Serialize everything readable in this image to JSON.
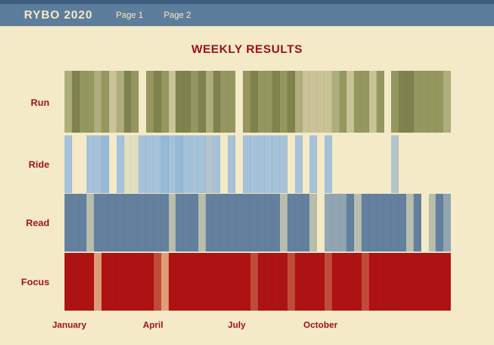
{
  "header": {
    "app_title": "RYBO 2020",
    "nav": [
      {
        "label": "Page 1"
      },
      {
        "label": "Page 2"
      }
    ]
  },
  "main": {
    "title": "WEEKLY RESULTS"
  },
  "colors": {
    "background": "#f4eac7",
    "header_bar": "#5d7d9c",
    "header_accent": "#3f5f82",
    "header_text": "#f4eac7",
    "accent_red_text": "#a31318"
  },
  "chart_data": {
    "type": "heatmap",
    "title": "WEEKLY RESULTS",
    "weeks": 52,
    "xticklabels": [
      "January",
      "April",
      "July",
      "October"
    ],
    "legend": "none",
    "value_scale": "0 = no activity (background), 1-4 = increasing intensity",
    "rows": [
      {
        "label": "Run",
        "colors": {
          "0": "transparent",
          "1": "#c9c397",
          "2": "#aeae7c",
          "3": "#959760",
          "4": "#7f824c"
        },
        "values": [
          2,
          4,
          3,
          3,
          2,
          3,
          1,
          2,
          4,
          3,
          0,
          3,
          4,
          3,
          1,
          4,
          4,
          3,
          4,
          2,
          4,
          3,
          3,
          0,
          3,
          4,
          3,
          3,
          4,
          3,
          4,
          2,
          1,
          1,
          1,
          1,
          2,
          3,
          1,
          3,
          3,
          1,
          3,
          0,
          3,
          4,
          4,
          3,
          3,
          3,
          3,
          2
        ]
      },
      {
        "label": "Ride",
        "colors": {
          "0": "transparent",
          "1": "#e0dfc0",
          "2": "#b4c4cb",
          "3": "#a6c2da",
          "4": "#95b9d6"
        },
        "values": [
          3,
          0,
          0,
          3,
          3,
          4,
          0,
          3,
          1,
          1,
          3,
          3,
          3,
          4,
          3,
          4,
          3,
          3,
          3,
          2,
          3,
          0,
          3,
          0,
          3,
          3,
          3,
          3,
          3,
          3,
          0,
          3,
          0,
          3,
          0,
          3,
          0,
          0,
          0,
          0,
          0,
          0,
          0,
          0,
          2,
          0,
          0,
          0,
          0,
          0,
          0,
          0
        ]
      },
      {
        "label": "Read",
        "colors": {
          "0": "transparent",
          "1": "#b8beae",
          "2": "#91a5b3",
          "3": "#7690a9",
          "4": "#64809f"
        },
        "values": [
          4,
          4,
          4,
          1,
          4,
          4,
          4,
          4,
          4,
          4,
          4,
          4,
          4,
          4,
          1,
          4,
          4,
          4,
          1,
          4,
          4,
          4,
          4,
          4,
          4,
          4,
          4,
          4,
          4,
          1,
          4,
          4,
          4,
          1,
          0,
          2,
          2,
          2,
          4,
          1,
          4,
          4,
          4,
          4,
          4,
          4,
          1,
          4,
          0,
          1,
          4,
          2
        ]
      },
      {
        "label": "Focus",
        "colors": {
          "0": "transparent",
          "1": "#df9d77",
          "2": "#c14b3b",
          "3": "#b52c22",
          "4": "#ae1212"
        },
        "values": [
          4,
          4,
          4,
          4,
          1,
          4,
          4,
          4,
          4,
          4,
          4,
          4,
          2,
          1,
          4,
          4,
          4,
          4,
          4,
          4,
          4,
          4,
          4,
          4,
          4,
          2,
          4,
          4,
          4,
          4,
          2,
          4,
          4,
          4,
          4,
          2,
          4,
          4,
          4,
          4,
          2,
          4,
          4,
          4,
          4,
          4,
          4,
          4,
          4,
          4,
          4,
          4
        ]
      }
    ]
  }
}
